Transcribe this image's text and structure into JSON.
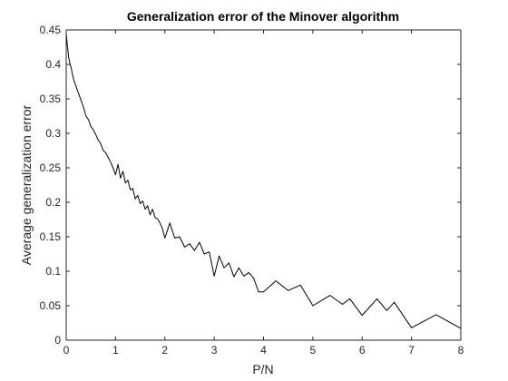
{
  "chart_data": {
    "type": "line",
    "title": "Generalization error of the Minover algorithm",
    "xlabel": "P/N",
    "ylabel": "Average generalization error",
    "xlim": [
      0,
      8
    ],
    "ylim": [
      0,
      0.45
    ],
    "x_ticks": [
      0,
      1,
      2,
      3,
      4,
      5,
      6,
      7,
      8
    ],
    "y_ticks": [
      0,
      0.05,
      0.1,
      0.15,
      0.2,
      0.25,
      0.3,
      0.35,
      0.4,
      0.45
    ],
    "x_tick_labels": [
      "0",
      "1",
      "2",
      "3",
      "4",
      "5",
      "6",
      "7",
      "8"
    ],
    "y_tick_labels": [
      "0",
      "0.05",
      "0.1",
      "0.15",
      "0.2",
      "0.25",
      "0.3",
      "0.35",
      "0.4",
      "0.45"
    ],
    "grid": false,
    "box": true,
    "colors": {
      "line": "#000000",
      "axes": "#262626",
      "background": "#ffffff"
    },
    "series": [
      {
        "x": [
          0.0,
          0.02,
          0.05,
          0.08,
          0.1,
          0.15,
          0.2,
          0.25,
          0.3,
          0.35,
          0.4,
          0.45,
          0.5,
          0.55,
          0.6,
          0.65,
          0.7,
          0.75,
          0.8,
          0.85,
          0.9,
          0.95,
          1.0,
          1.05,
          1.1,
          1.15,
          1.2,
          1.25,
          1.3,
          1.35,
          1.4,
          1.45,
          1.5,
          1.55,
          1.6,
          1.65,
          1.7,
          1.75,
          1.8,
          1.85,
          1.9,
          1.95,
          2.0,
          2.1,
          2.2,
          2.3,
          2.4,
          2.5,
          2.6,
          2.7,
          2.8,
          2.9,
          3.0,
          3.1,
          3.2,
          3.3,
          3.4,
          3.5,
          3.6,
          3.7,
          3.8,
          3.9,
          4.0,
          4.25,
          4.5,
          4.75,
          5.0,
          5.35,
          5.6,
          5.75,
          6.0,
          6.3,
          6.5,
          6.65,
          7.0,
          7.5,
          8.0
        ],
        "y": [
          0.445,
          0.43,
          0.41,
          0.4,
          0.395,
          0.378,
          0.368,
          0.358,
          0.348,
          0.338,
          0.325,
          0.32,
          0.31,
          0.305,
          0.298,
          0.29,
          0.285,
          0.275,
          0.272,
          0.265,
          0.258,
          0.25,
          0.24,
          0.255,
          0.235,
          0.245,
          0.228,
          0.232,
          0.218,
          0.22,
          0.205,
          0.21,
          0.198,
          0.202,
          0.19,
          0.195,
          0.182,
          0.19,
          0.178,
          0.176,
          0.17,
          0.162,
          0.148,
          0.17,
          0.148,
          0.15,
          0.135,
          0.14,
          0.13,
          0.142,
          0.125,
          0.128,
          0.093,
          0.122,
          0.105,
          0.112,
          0.092,
          0.105,
          0.093,
          0.098,
          0.09,
          0.07,
          0.07,
          0.086,
          0.072,
          0.08,
          0.05,
          0.065,
          0.052,
          0.06,
          0.036,
          0.06,
          0.043,
          0.055,
          0.018,
          0.037,
          0.017
        ]
      }
    ]
  }
}
